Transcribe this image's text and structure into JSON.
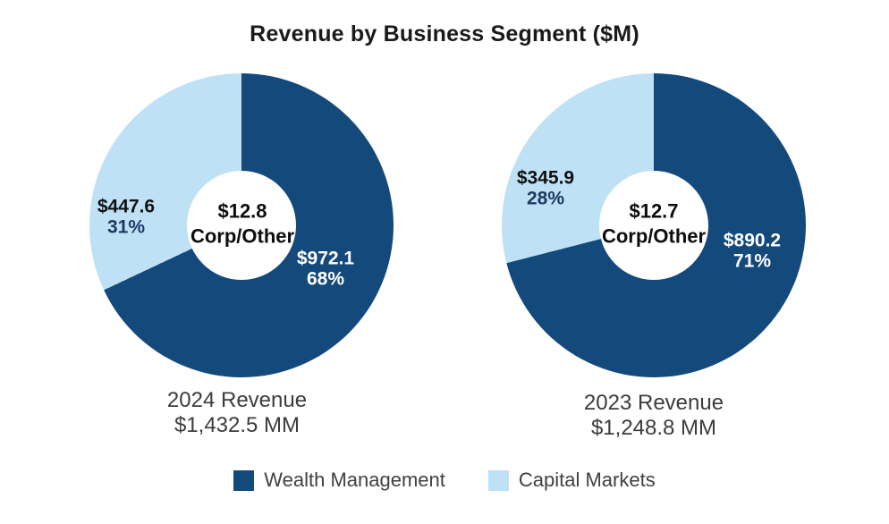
{
  "title": "Revenue by Business Segment ($M)",
  "colors": {
    "wealth_management": "#14497C",
    "capital_markets": "#BEE1F5",
    "pct_navy": "#1F3864",
    "text_dark": "#111111",
    "caption_gray": "#3C3C3C"
  },
  "chart_data": [
    {
      "type": "pie",
      "subtype": "donut",
      "year": "2024",
      "caption_line1": "2024 Revenue",
      "caption_line2": "$1,432.5 MM",
      "total_mm": 1432.5,
      "center": {
        "value_label": "$12.8",
        "name": "Corp/Other",
        "value_mm": 12.8
      },
      "segments": [
        {
          "name": "Wealth Management",
          "value_mm": 972.1,
          "pct": 68,
          "value_label": "$972.1",
          "pct_label": "68%",
          "color": "#14497C"
        },
        {
          "name": "Capital Markets",
          "value_mm": 447.6,
          "pct": 31,
          "value_label": "$447.6",
          "pct_label": "31%",
          "color": "#BEE1F5"
        }
      ],
      "start_angle_deg": 0,
      "direction": "clockwise"
    },
    {
      "type": "pie",
      "subtype": "donut",
      "year": "2023",
      "caption_line1": "2023 Revenue",
      "caption_line2": "$1,248.8 MM",
      "total_mm": 1248.8,
      "center": {
        "value_label": "$12.7",
        "name": "Corp/Other",
        "value_mm": 12.7
      },
      "segments": [
        {
          "name": "Wealth Management",
          "value_mm": 890.2,
          "pct": 71,
          "value_label": "$890.2",
          "pct_label": "71%",
          "color": "#14497C"
        },
        {
          "name": "Capital Markets",
          "value_mm": 345.9,
          "pct": 28,
          "value_label": "$345.9",
          "pct_label": "28%",
          "color": "#BEE1F5"
        }
      ],
      "start_angle_deg": 0,
      "direction": "clockwise"
    }
  ],
  "legend": {
    "items": [
      {
        "label": "Wealth Management",
        "color": "#14497C"
      },
      {
        "label": "Capital Markets",
        "color": "#BEE1F5"
      }
    ],
    "position": "bottom"
  }
}
